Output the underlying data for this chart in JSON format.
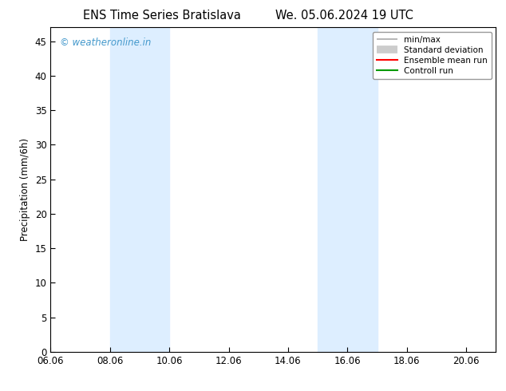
{
  "title_left": "ENS Time Series Bratislava",
  "title_right": "We. 05.06.2024 19 UTC",
  "ylabel": "Precipitation (mm/6h)",
  "xlabel": "",
  "xlim": [
    6.06,
    21.06
  ],
  "ylim": [
    0,
    47
  ],
  "yticks": [
    0,
    5,
    10,
    15,
    20,
    25,
    30,
    35,
    40,
    45
  ],
  "xticks": [
    6.06,
    8.06,
    10.06,
    12.06,
    14.06,
    16.06,
    18.06,
    20.06
  ],
  "xtick_labels": [
    "06.06",
    "08.06",
    "10.06",
    "12.06",
    "14.06",
    "16.06",
    "18.06",
    "20.06"
  ],
  "shaded_regions": [
    {
      "xmin": 8.06,
      "xmax": 10.06,
      "color": "#ddeeff"
    },
    {
      "xmin": 15.06,
      "xmax": 17.06,
      "color": "#ddeeff"
    }
  ],
  "watermark": "© weatheronline.in",
  "watermark_color": "#4499cc",
  "background_color": "#ffffff",
  "legend_entries": [
    {
      "label": "min/max",
      "color": "#aaaaaa",
      "lw": 1.2
    },
    {
      "label": "Standard deviation",
      "color": "#cccccc",
      "lw": 7
    },
    {
      "label": "Ensemble mean run",
      "color": "#ff0000",
      "lw": 1.5
    },
    {
      "label": "Controll run",
      "color": "#009900",
      "lw": 1.5
    }
  ],
  "font_family": "DejaVu Sans",
  "title_fontsize": 10.5,
  "tick_fontsize": 8.5,
  "ylabel_fontsize": 8.5,
  "legend_fontsize": 7.5,
  "watermark_fontsize": 8.5
}
